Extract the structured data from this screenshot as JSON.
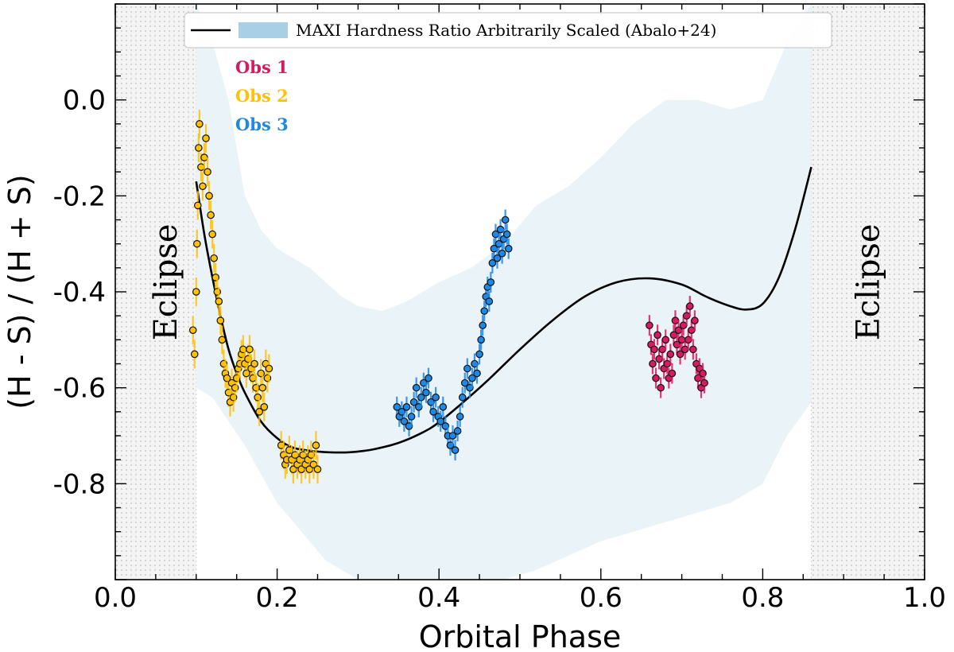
{
  "chart_data": {
    "type": "scatter",
    "xlabel": "Orbital Phase",
    "ylabel": "(H - S) / (H + S)",
    "xlim": [
      0.0,
      1.0
    ],
    "ylim": [
      -1.0,
      0.2
    ],
    "x_ticks": [
      0.0,
      0.2,
      0.4,
      0.6,
      0.8,
      1.0
    ],
    "x_tick_labels": [
      "0.0",
      "0.2",
      "0.4",
      "0.6",
      "0.8",
      "1.0"
    ],
    "y_ticks": [
      0.0,
      -0.2,
      -0.4,
      -0.6,
      -0.8
    ],
    "y_tick_labels": [
      "0.0",
      "-0.2",
      "-0.4",
      "-0.6",
      "-0.8"
    ],
    "eclipse_regions": [
      {
        "label": "Eclipse",
        "x_range": [
          0.0,
          0.1
        ]
      },
      {
        "label": "Eclipse",
        "x_range": [
          0.86,
          1.0
        ]
      }
    ],
    "legend": {
      "placement": "top-center",
      "entries": [
        {
          "kind": "line",
          "label": ""
        },
        {
          "kind": "patch",
          "label": "MAXI Hardness Ratio Arbitrarily Scaled (Abalo+24)"
        }
      ]
    },
    "colors": {
      "obs1": "#d81b60",
      "obs2": "#ffc107",
      "obs3": "#1e88e5",
      "band": "#eaf3f8",
      "legend_patch": "#a8cfe3",
      "curve": "#000000",
      "eclipse_fill": "#ececec"
    },
    "model_curve": {
      "x": [
        0.1,
        0.11,
        0.12,
        0.13,
        0.14,
        0.15,
        0.16,
        0.18,
        0.2,
        0.22,
        0.25,
        0.28,
        0.3,
        0.32,
        0.35,
        0.38,
        0.4,
        0.43,
        0.46,
        0.5,
        0.54,
        0.58,
        0.62,
        0.66,
        0.7,
        0.73,
        0.76,
        0.78,
        0.8,
        0.82,
        0.84,
        0.86
      ],
      "y": [
        -0.17,
        -0.28,
        -0.37,
        -0.45,
        -0.52,
        -0.57,
        -0.61,
        -0.67,
        -0.705,
        -0.725,
        -0.733,
        -0.735,
        -0.733,
        -0.728,
        -0.715,
        -0.693,
        -0.672,
        -0.63,
        -0.585,
        -0.52,
        -0.46,
        -0.41,
        -0.38,
        -0.372,
        -0.385,
        -0.41,
        -0.43,
        -0.437,
        -0.425,
        -0.37,
        -0.27,
        -0.14
      ]
    },
    "maxi_band": {
      "x": [
        0.1,
        0.12,
        0.14,
        0.16,
        0.18,
        0.2,
        0.22,
        0.24,
        0.26,
        0.28,
        0.3,
        0.33,
        0.36,
        0.4,
        0.44,
        0.48,
        0.52,
        0.56,
        0.6,
        0.64,
        0.68,
        0.72,
        0.76,
        0.8,
        0.83,
        0.86
      ],
      "upper": [
        0.2,
        0.12,
        0.0,
        -0.2,
        -0.27,
        -0.31,
        -0.33,
        -0.35,
        -0.38,
        -0.41,
        -0.43,
        -0.44,
        -0.42,
        -0.38,
        -0.35,
        -0.3,
        -0.22,
        -0.18,
        -0.12,
        -0.05,
        0.0,
        0.0,
        -0.02,
        0.0,
        0.12,
        0.2
      ],
      "lower": [
        -0.6,
        -0.62,
        -0.67,
        -0.72,
        -0.78,
        -0.84,
        -0.88,
        -0.92,
        -0.96,
        -0.98,
        -1.0,
        -1.0,
        -1.0,
        -1.0,
        -1.0,
        -1.0,
        -0.98,
        -0.95,
        -0.92,
        -0.9,
        -0.88,
        -0.86,
        -0.84,
        -0.8,
        -0.7,
        -0.63
      ]
    },
    "series": [
      {
        "name": "Obs 1",
        "color_key": "obs1",
        "points": [
          [
            0.66,
            -0.47
          ],
          [
            0.662,
            -0.51
          ],
          [
            0.664,
            -0.55
          ],
          [
            0.666,
            -0.52
          ],
          [
            0.668,
            -0.58
          ],
          [
            0.67,
            -0.49
          ],
          [
            0.672,
            -0.54
          ],
          [
            0.674,
            -0.6
          ],
          [
            0.676,
            -0.52
          ],
          [
            0.678,
            -0.56
          ],
          [
            0.68,
            -0.5
          ],
          [
            0.682,
            -0.55
          ],
          [
            0.684,
            -0.58
          ],
          [
            0.686,
            -0.53
          ],
          [
            0.688,
            -0.57
          ],
          [
            0.69,
            -0.49
          ],
          [
            0.692,
            -0.46
          ],
          [
            0.694,
            -0.51
          ],
          [
            0.696,
            -0.48
          ],
          [
            0.698,
            -0.53
          ],
          [
            0.7,
            -0.5
          ],
          [
            0.702,
            -0.47
          ],
          [
            0.704,
            -0.52
          ],
          [
            0.706,
            -0.45
          ],
          [
            0.708,
            -0.5
          ],
          [
            0.71,
            -0.43
          ],
          [
            0.712,
            -0.48
          ],
          [
            0.714,
            -0.52
          ],
          [
            0.716,
            -0.46
          ],
          [
            0.718,
            -0.55
          ],
          [
            0.72,
            -0.58
          ],
          [
            0.722,
            -0.56
          ],
          [
            0.724,
            -0.6
          ],
          [
            0.726,
            -0.57
          ],
          [
            0.728,
            -0.59
          ]
        ]
      },
      {
        "name": "Obs 2",
        "color_key": "obs2",
        "points": [
          [
            0.096,
            -0.48
          ],
          [
            0.098,
            -0.53
          ],
          [
            0.1,
            -0.4
          ],
          [
            0.101,
            -0.3
          ],
          [
            0.102,
            -0.22
          ],
          [
            0.103,
            -0.1
          ],
          [
            0.104,
            -0.05
          ],
          [
            0.106,
            -0.14
          ],
          [
            0.108,
            -0.18
          ],
          [
            0.11,
            -0.12
          ],
          [
            0.112,
            -0.08
          ],
          [
            0.114,
            -0.15
          ],
          [
            0.116,
            -0.2
          ],
          [
            0.118,
            -0.24
          ],
          [
            0.12,
            -0.28
          ],
          [
            0.122,
            -0.33
          ],
          [
            0.124,
            -0.37
          ],
          [
            0.126,
            -0.4
          ],
          [
            0.128,
            -0.42
          ],
          [
            0.13,
            -0.46
          ],
          [
            0.132,
            -0.5
          ],
          [
            0.134,
            -0.55
          ],
          [
            0.136,
            -0.57
          ],
          [
            0.138,
            -0.58
          ],
          [
            0.14,
            -0.61
          ],
          [
            0.142,
            -0.63
          ],
          [
            0.144,
            -0.59
          ],
          [
            0.146,
            -0.62
          ],
          [
            0.148,
            -0.6
          ],
          [
            0.15,
            -0.58
          ],
          [
            0.152,
            -0.56
          ],
          [
            0.154,
            -0.55
          ],
          [
            0.156,
            -0.53
          ],
          [
            0.158,
            -0.52
          ],
          [
            0.16,
            -0.55
          ],
          [
            0.162,
            -0.57
          ],
          [
            0.164,
            -0.54
          ],
          [
            0.166,
            -0.52
          ],
          [
            0.168,
            -0.56
          ],
          [
            0.17,
            -0.58
          ],
          [
            0.172,
            -0.55
          ],
          [
            0.174,
            -0.6
          ],
          [
            0.176,
            -0.62
          ],
          [
            0.178,
            -0.65
          ],
          [
            0.18,
            -0.57
          ],
          [
            0.182,
            -0.6
          ],
          [
            0.184,
            -0.64
          ],
          [
            0.186,
            -0.55
          ],
          [
            0.188,
            -0.58
          ],
          [
            0.19,
            -0.56
          ],
          [
            0.205,
            -0.72
          ],
          [
            0.208,
            -0.74
          ],
          [
            0.21,
            -0.76
          ],
          [
            0.212,
            -0.75
          ],
          [
            0.215,
            -0.73
          ],
          [
            0.218,
            -0.75
          ],
          [
            0.22,
            -0.77
          ],
          [
            0.222,
            -0.74
          ],
          [
            0.225,
            -0.76
          ],
          [
            0.228,
            -0.75
          ],
          [
            0.23,
            -0.77
          ],
          [
            0.232,
            -0.74
          ],
          [
            0.235,
            -0.76
          ],
          [
            0.238,
            -0.75
          ],
          [
            0.24,
            -0.77
          ],
          [
            0.242,
            -0.74
          ],
          [
            0.245,
            -0.76
          ],
          [
            0.248,
            -0.72
          ],
          [
            0.25,
            -0.77
          ]
        ]
      },
      {
        "name": "Obs 3",
        "color_key": "obs3",
        "points": [
          [
            0.348,
            -0.64
          ],
          [
            0.351,
            -0.66
          ],
          [
            0.354,
            -0.65
          ],
          [
            0.357,
            -0.67
          ],
          [
            0.36,
            -0.64
          ],
          [
            0.363,
            -0.68
          ],
          [
            0.366,
            -0.66
          ],
          [
            0.369,
            -0.63
          ],
          [
            0.372,
            -0.6
          ],
          [
            0.375,
            -0.64
          ],
          [
            0.378,
            -0.62
          ],
          [
            0.381,
            -0.59
          ],
          [
            0.384,
            -0.61
          ],
          [
            0.387,
            -0.58
          ],
          [
            0.39,
            -0.63
          ],
          [
            0.393,
            -0.65
          ],
          [
            0.396,
            -0.62
          ],
          [
            0.399,
            -0.66
          ],
          [
            0.402,
            -0.67
          ],
          [
            0.405,
            -0.64
          ],
          [
            0.408,
            -0.68
          ],
          [
            0.411,
            -0.7
          ],
          [
            0.414,
            -0.72
          ],
          [
            0.417,
            -0.7
          ],
          [
            0.42,
            -0.73
          ],
          [
            0.423,
            -0.69
          ],
          [
            0.426,
            -0.66
          ],
          [
            0.429,
            -0.62
          ],
          [
            0.432,
            -0.59
          ],
          [
            0.435,
            -0.56
          ],
          [
            0.438,
            -0.6
          ],
          [
            0.441,
            -0.58
          ],
          [
            0.444,
            -0.55
          ],
          [
            0.447,
            -0.57
          ],
          [
            0.45,
            -0.53
          ],
          [
            0.452,
            -0.5
          ],
          [
            0.454,
            -0.47
          ],
          [
            0.456,
            -0.44
          ],
          [
            0.458,
            -0.41
          ],
          [
            0.46,
            -0.39
          ],
          [
            0.462,
            -0.42
          ],
          [
            0.464,
            -0.38
          ],
          [
            0.466,
            -0.34
          ],
          [
            0.468,
            -0.31
          ],
          [
            0.47,
            -0.28
          ],
          [
            0.472,
            -0.33
          ],
          [
            0.474,
            -0.3
          ],
          [
            0.476,
            -0.27
          ],
          [
            0.478,
            -0.32
          ],
          [
            0.48,
            -0.29
          ],
          [
            0.482,
            -0.25
          ],
          [
            0.484,
            -0.28
          ],
          [
            0.486,
            -0.31
          ]
        ]
      }
    ]
  }
}
